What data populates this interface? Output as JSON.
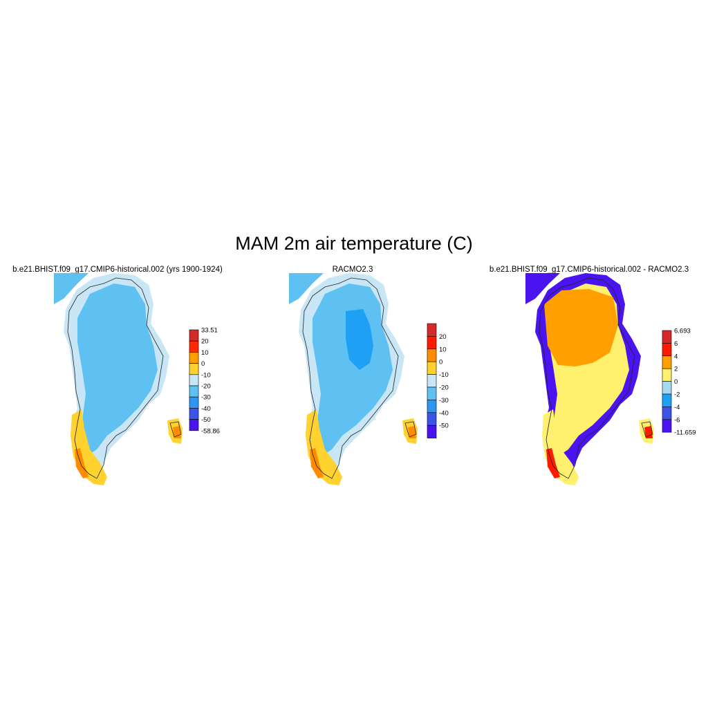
{
  "title": "MAM 2m air temperature (C)",
  "panels": [
    {
      "id": "model",
      "title": "b.e21.BHIST.f09_g17.CMIP6-historical.002 (yrs 1900-1924)",
      "colorbar": {
        "labels": [
          "33.51",
          "20",
          "10",
          "0",
          "-10",
          "-20",
          "-30",
          "-40",
          "-50",
          "-58.86"
        ],
        "colors": [
          "#d42a2a",
          "#ff2a00",
          "#ff9f00",
          "#ffd230",
          "#c8e6f5",
          "#5fc0f2",
          "#2e96f0",
          "#3c55e6",
          "#4a14f0"
        ]
      }
    },
    {
      "id": "racmo",
      "title": "RACMO2.3",
      "colorbar": {
        "labels": [
          "20",
          "10",
          "0",
          "-10",
          "-20",
          "-30",
          "-40",
          "-50"
        ],
        "colors": [
          "#d42a2a",
          "#ff1a00",
          "#ff8c00",
          "#ffd230",
          "#c8e6f5",
          "#5fc0f2",
          "#2e96f0",
          "#3c55e6",
          "#4a14f0"
        ]
      }
    },
    {
      "id": "diff",
      "title": "b.e21.BHIST.f09_g17.CMIP6-historical.002 - RACMO2.3",
      "colorbar": {
        "labels": [
          "6.693",
          "6",
          "4",
          "2",
          "0",
          "-2",
          "-4",
          "-6",
          "-11.659"
        ],
        "colors": [
          "#d42a2a",
          "#ff1a00",
          "#ff9f00",
          "#fff06e",
          "#a8d8f0",
          "#1ea0f5",
          "#3c55e6",
          "#4a14f0"
        ]
      }
    }
  ]
}
